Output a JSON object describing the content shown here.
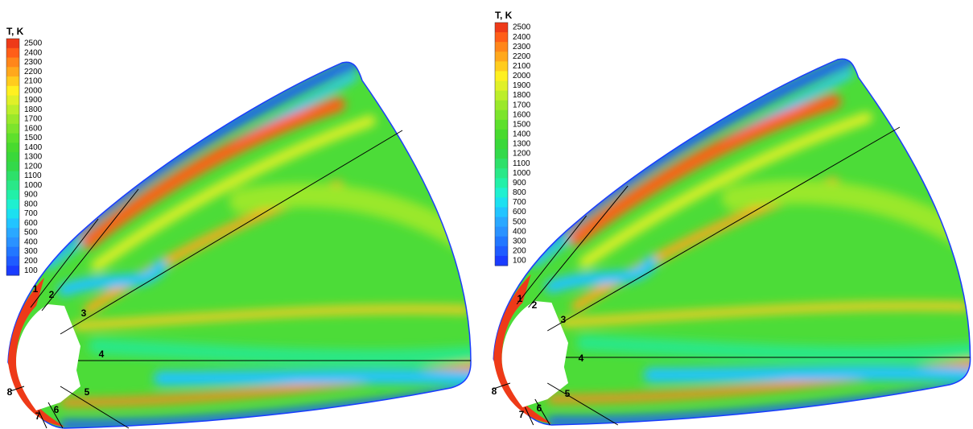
{
  "legend_colors": [
    "#ee3a18",
    "#ff5e18",
    "#ff861a",
    "#ffa81c",
    "#ffcc1e",
    "#fff020",
    "#e0f028",
    "#bcee2a",
    "#9ae82a",
    "#7ce42c",
    "#5ee02c",
    "#48da2e",
    "#3ad83a",
    "#33d94a",
    "#2ee06a",
    "#2ae888",
    "#22f0a8",
    "#1ff0d0",
    "#1ce0f0",
    "#22c4ff",
    "#2aa8ff",
    "#2a92ff",
    "#2277ff",
    "#1f5cff",
    "#1a3cff"
  ],
  "panels": [
    {
      "legend": {
        "title": "T, K",
        "levels": [
          2500,
          2400,
          2300,
          2200,
          2100,
          2000,
          1900,
          1800,
          1700,
          1600,
          1500,
          1400,
          1300,
          1200,
          1100,
          1000,
          900,
          800,
          700,
          600,
          500,
          400,
          300,
          200,
          100
        ]
      },
      "line_labels": [
        "1",
        "2",
        "3",
        "4",
        "5",
        "6",
        "7",
        "8"
      ]
    },
    {
      "legend": {
        "title": "T, K",
        "levels": [
          2500,
          2400,
          2300,
          2200,
          2100,
          2000,
          1900,
          1800,
          1700,
          1600,
          1500,
          1400,
          1300,
          1200,
          1100,
          1000,
          900,
          800,
          700,
          600,
          500,
          400,
          300,
          200,
          100
        ]
      },
      "line_labels": [
        "1",
        "2",
        "3",
        "4",
        "5",
        "6",
        "7",
        "8"
      ]
    }
  ]
}
